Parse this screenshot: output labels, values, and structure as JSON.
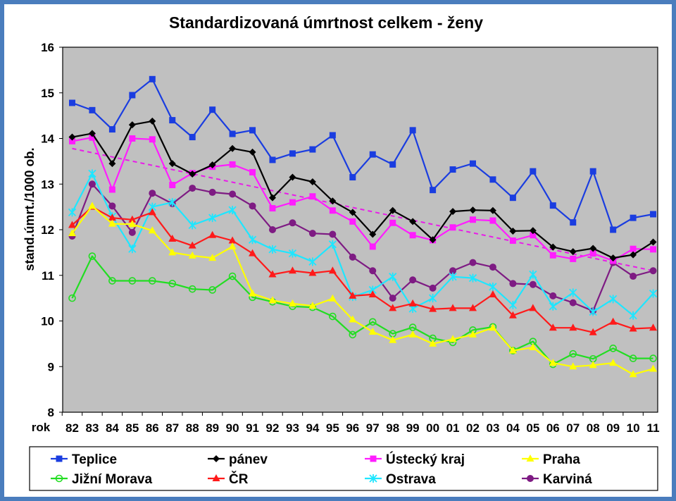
{
  "chart_data": {
    "type": "line",
    "title": "Standardizovaná úmrtnost celkem - ženy",
    "ylabel": "stand.úmrt./1000 ob.",
    "xlabel": "rok",
    "ylim": [
      8,
      16
    ],
    "yticks": [
      "8",
      "9",
      "10",
      "11",
      "12",
      "13",
      "14",
      "15",
      "16"
    ],
    "categories": [
      "82",
      "83",
      "84",
      "85",
      "86",
      "87",
      "88",
      "89",
      "90",
      "91",
      "92",
      "93",
      "94",
      "95",
      "96",
      "97",
      "98",
      "99",
      "00",
      "01",
      "02",
      "03",
      "04",
      "05",
      "06",
      "07",
      "08",
      "09",
      "10",
      "11"
    ],
    "grid": false,
    "legend_position": "bottom",
    "series": [
      {
        "name": "Teplice",
        "color": "#1a3de0",
        "marker": "square",
        "filled": true,
        "values": [
          14.78,
          14.62,
          14.2,
          14.95,
          15.3,
          14.4,
          14.03,
          14.63,
          14.1,
          14.18,
          13.53,
          13.67,
          13.76,
          14.07,
          13.15,
          13.65,
          13.43,
          14.18,
          12.87,
          13.32,
          13.45,
          13.1,
          12.7,
          13.28,
          12.53,
          12.16,
          13.28,
          12.0,
          12.26,
          12.34
        ]
      },
      {
        "name": "pánev",
        "color": "#000000",
        "marker": "diamond",
        "filled": true,
        "values": [
          14.03,
          14.11,
          13.45,
          14.3,
          14.38,
          13.45,
          13.22,
          13.42,
          13.78,
          13.7,
          12.7,
          13.15,
          13.05,
          12.63,
          12.38,
          11.9,
          12.42,
          12.18,
          11.78,
          12.4,
          12.43,
          12.42,
          11.97,
          11.98,
          11.62,
          11.52,
          11.59,
          11.38,
          11.45,
          11.73
        ]
      },
      {
        "name": "Ústecký kraj",
        "color": "#ff1dff",
        "marker": "square",
        "filled": true,
        "values": [
          13.94,
          14.02,
          12.88,
          14.0,
          13.98,
          12.98,
          13.24,
          13.38,
          13.43,
          13.26,
          12.47,
          12.6,
          12.73,
          12.42,
          12.18,
          11.63,
          12.15,
          11.88,
          11.77,
          12.05,
          12.22,
          12.2,
          11.76,
          11.88,
          11.44,
          11.36,
          11.48,
          11.32,
          11.58,
          11.57
        ]
      },
      {
        "name": "Praha",
        "color": "#ffff00",
        "marker": "triangle",
        "filled": true,
        "values": [
          11.92,
          12.52,
          12.13,
          12.12,
          11.98,
          11.5,
          11.43,
          11.38,
          11.63,
          10.6,
          10.45,
          10.38,
          10.33,
          10.49,
          10.03,
          9.76,
          9.58,
          9.7,
          9.5,
          9.6,
          9.7,
          9.85,
          9.35,
          9.42,
          9.08,
          9.0,
          9.03,
          9.08,
          8.83,
          8.95
        ]
      },
      {
        "name": "Jižní Morava",
        "color": "#22dd22",
        "marker": "circle",
        "filled": false,
        "values": [
          10.5,
          11.42,
          10.88,
          10.88,
          10.88,
          10.82,
          10.7,
          10.68,
          10.98,
          10.52,
          10.42,
          10.32,
          10.3,
          10.1,
          9.7,
          9.98,
          9.72,
          9.86,
          9.62,
          9.53,
          9.8,
          9.87,
          9.35,
          9.55,
          9.05,
          9.28,
          9.17,
          9.4,
          9.18,
          9.18
        ]
      },
      {
        "name": "ČR",
        "color": "#ff1a1a",
        "marker": "triangle",
        "filled": true,
        "values": [
          12.1,
          12.5,
          12.26,
          12.22,
          12.38,
          11.8,
          11.65,
          11.88,
          11.76,
          11.48,
          11.02,
          11.1,
          11.05,
          11.1,
          10.55,
          10.58,
          10.28,
          10.38,
          10.26,
          10.28,
          10.28,
          10.58,
          10.12,
          10.28,
          9.85,
          9.85,
          9.75,
          9.98,
          9.83,
          9.85
        ]
      },
      {
        "name": "Ostrava",
        "color": "#1ee6ff",
        "marker": "star",
        "filled": false,
        "values": [
          12.38,
          13.23,
          12.29,
          11.58,
          12.5,
          12.6,
          12.1,
          12.26,
          12.43,
          11.78,
          11.57,
          11.48,
          11.3,
          11.68,
          10.53,
          10.68,
          10.97,
          10.27,
          10.5,
          10.97,
          10.94,
          10.75,
          10.35,
          11.02,
          10.32,
          10.62,
          10.2,
          10.48,
          10.12,
          10.6
        ]
      },
      {
        "name": "Karviná",
        "color": "#7e1b83",
        "marker": "circle",
        "filled": true,
        "values": [
          11.86,
          13.0,
          12.52,
          11.94,
          12.8,
          12.57,
          12.91,
          12.82,
          12.78,
          12.52,
          12.0,
          12.15,
          11.92,
          11.9,
          11.4,
          11.1,
          10.5,
          10.9,
          10.72,
          11.1,
          11.28,
          11.18,
          10.82,
          10.8,
          10.55,
          10.4,
          10.22,
          11.28,
          10.98,
          11.1
        ]
      }
    ],
    "trendline": {
      "color": "#e81de8",
      "style": "dashed",
      "values": [
        13.78,
        11.1
      ]
    }
  }
}
